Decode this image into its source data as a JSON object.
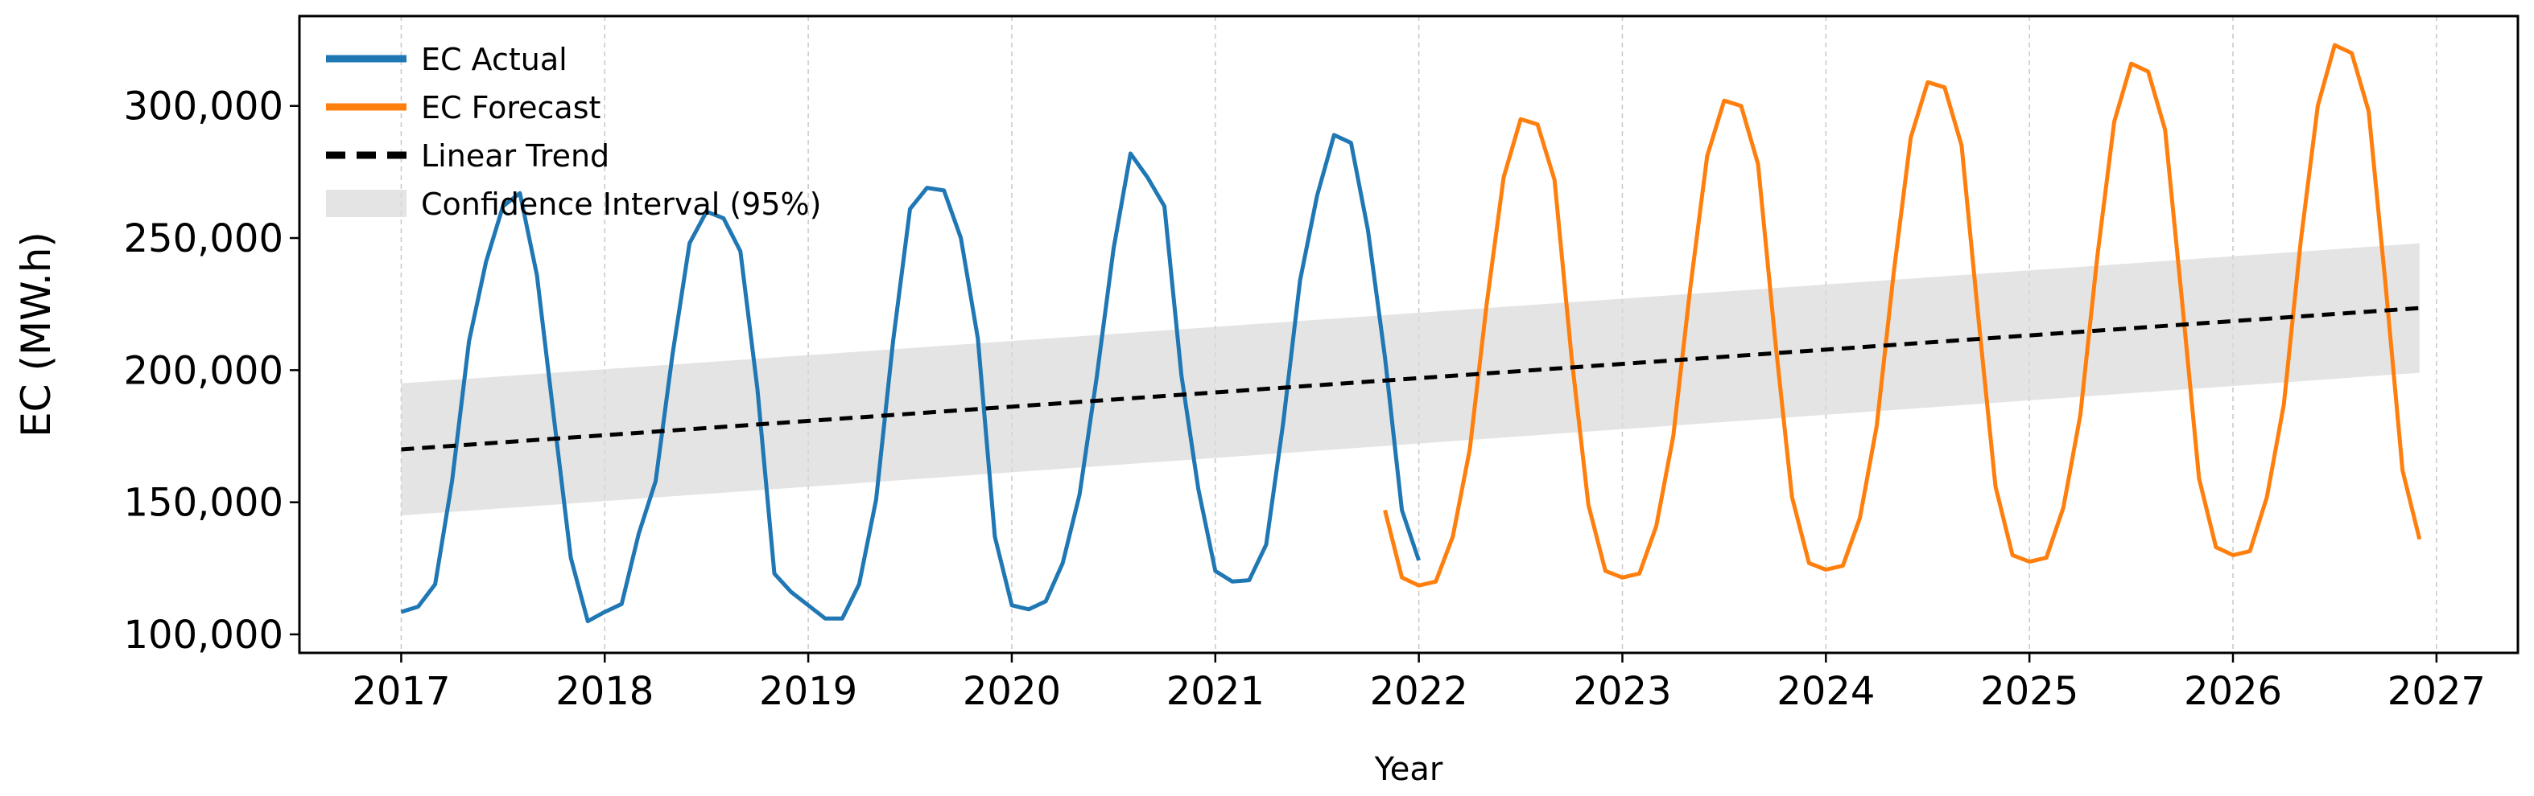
{
  "chart_data": {
    "type": "line",
    "xlabel": "Year",
    "ylabel": "EC (MW.h)",
    "xlim": [
      2016.5,
      2027.4
    ],
    "ylim": [
      93000,
      334000
    ],
    "xticks": [
      "2017",
      "2018",
      "2019",
      "2020",
      "2021",
      "2022",
      "2023",
      "2024",
      "2025",
      "2026",
      "2027"
    ],
    "yticks": [
      "100,000",
      "150,000",
      "200,000",
      "250,000",
      "300,000"
    ],
    "grid": "vertical dashed at x ticks",
    "legend_placement": "top-left",
    "legend": {
      "actual": "EC Actual",
      "forecast": "EC Forecast",
      "trend": "Linear Trend",
      "ci": "Confidence Interval (95%)"
    },
    "colors": {
      "actual": "#1f77b4",
      "forecast": "#ff7f0e",
      "trend": "#000000",
      "ci": "#d9d9d9"
    },
    "series": [
      {
        "name": "EC Actual",
        "start": "2017-01",
        "frequency": "monthly",
        "values": [
          108500,
          110500,
          119000,
          158000,
          211000,
          241000,
          262000,
          267000,
          236000,
          182000,
          129000,
          105000,
          108500,
          111500,
          138000,
          158000,
          206000,
          248000,
          260000,
          257500,
          245000,
          193000,
          123000,
          116000,
          111000,
          106000,
          106000,
          119000,
          151000,
          211000,
          261000,
          269000,
          268000,
          250000,
          212000,
          137000,
          111000,
          109500,
          112500,
          127000,
          153000,
          197000,
          246000,
          282000,
          273000,
          262000,
          198000,
          155000,
          124000,
          120000,
          120500,
          134000,
          180000,
          234000,
          266000,
          289000,
          286000,
          253000,
          205000,
          147000,
          128000
        ]
      },
      {
        "name": "EC Forecast",
        "start": "2021-11",
        "frequency": "monthly",
        "values": [
          147000,
          121500,
          118500,
          120000,
          137000,
          170000,
          225000,
          273000,
          295000,
          293000,
          272000,
          205000,
          149000,
          124000,
          121500,
          123000,
          141000,
          175000,
          231000,
          281000,
          302000,
          300000,
          278000,
          212000,
          152000,
          127000,
          124500,
          126000,
          144000,
          179000,
          237000,
          288000,
          309000,
          307000,
          285000,
          219000,
          156000,
          130000,
          127500,
          129000,
          148000,
          183000,
          243000,
          294000,
          316000,
          313000,
          291000,
          226000,
          159000,
          133000,
          130000,
          131500,
          152000,
          187000,
          249000,
          300000,
          323000,
          320000,
          298000,
          232000,
          162000,
          136000
        ]
      },
      {
        "name": "Linear Trend",
        "x": [
          "2017-01",
          "2026-12"
        ],
        "values": [
          170000,
          223500
        ],
        "ci_lower": [
          145000,
          199000
        ],
        "ci_upper": [
          195000,
          248000
        ]
      }
    ]
  }
}
